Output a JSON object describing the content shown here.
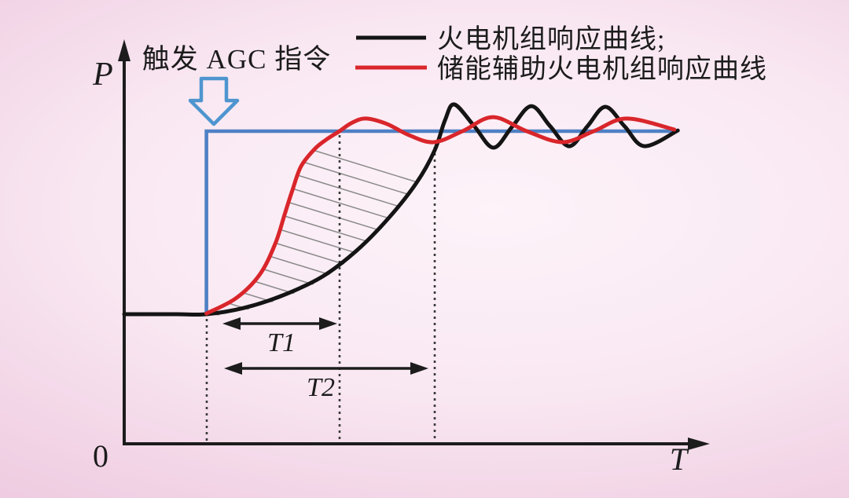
{
  "figure": {
    "y_axis_label": "P",
    "x_axis_label": "T",
    "origin_label": "0",
    "agc_annotation": "触发 AGC 指令",
    "t1_label": "T1",
    "t2_label": "T2",
    "legend": {
      "items": [
        {
          "label": "火电机组响应曲线;",
          "color": "#141414"
        },
        {
          "label": "储能辅助火电机组响应曲线",
          "color": "#d9262b"
        }
      ]
    },
    "colors": {
      "agc_text_blue": "#4a7cc0",
      "step_blue": "#4e80c4",
      "arrow_outline_blue": "#4e95cf",
      "thermal_black": "#141414",
      "storage_red": "#d9262b",
      "hatch_gray": "#8a8a8a",
      "dotted_line": "#3a3a3a",
      "background_center": "#fdf3f9",
      "background_edge": "#e9bedb"
    }
  },
  "chart_data": {
    "type": "line",
    "title": "",
    "xlabel": "T",
    "ylabel": "P",
    "axis_note": "axes unlabeled except origin 0; values normalized: baseline power = 0, AGC setpoint = 1",
    "xlim": [
      0,
      1
    ],
    "ylim": [
      0,
      1.3
    ],
    "grid": false,
    "legend_position": "top-right",
    "annotations": {
      "agc_trigger_label": "触发 AGC 指令",
      "agc_trigger_t": 0.141,
      "t1_span": [
        0.17,
        0.365
      ],
      "t2_span": [
        0.17,
        0.52
      ],
      "dotted_vertical_lines_t": [
        0.141,
        0.369,
        0.532
      ],
      "hatched_region": "area between storage-assisted curve and thermal-only curve for t = 0.141 to 0.53"
    },
    "series": [
      {
        "id": "agc-step",
        "name": "AGC 指令 (阶跃)",
        "color": "#4e80c4",
        "smooth": false,
        "in_legend": false,
        "points": [
          [
            0.141,
            -0.004
          ],
          [
            0.141,
            1.0
          ],
          [
            0.946,
            1.0
          ]
        ]
      },
      {
        "id": "thermal",
        "name": "火电机组响应曲线",
        "color": "#141414",
        "smooth": true,
        "in_legend": true,
        "points": [
          [
            0.0,
            0.0
          ],
          [
            0.09,
            0.0
          ],
          [
            0.141,
            0.0
          ],
          [
            0.205,
            0.034
          ],
          [
            0.272,
            0.103
          ],
          [
            0.34,
            0.206
          ],
          [
            0.4,
            0.352
          ],
          [
            0.454,
            0.528
          ],
          [
            0.501,
            0.717
          ],
          [
            0.532,
            0.893
          ],
          [
            0.55,
            1.06
          ],
          [
            0.566,
            1.146
          ],
          [
            0.6,
            1.028
          ],
          [
            0.633,
            0.91
          ],
          [
            0.665,
            1.024
          ],
          [
            0.698,
            1.137
          ],
          [
            0.73,
            1.028
          ],
          [
            0.763,
            0.918
          ],
          [
            0.794,
            1.026
          ],
          [
            0.825,
            1.133
          ],
          [
            0.858,
            1.026
          ],
          [
            0.892,
            0.918
          ],
          [
            0.949,
            1.004
          ]
        ]
      },
      {
        "id": "storage",
        "name": "储能辅助火电机组响应曲线",
        "color": "#d9262b",
        "smooth": true,
        "in_legend": true,
        "points": [
          [
            0.141,
            0.004
          ],
          [
            0.191,
            0.086
          ],
          [
            0.232,
            0.215
          ],
          [
            0.259,
            0.386
          ],
          [
            0.275,
            0.545
          ],
          [
            0.288,
            0.674
          ],
          [
            0.303,
            0.807
          ],
          [
            0.326,
            0.901
          ],
          [
            0.346,
            0.953
          ],
          [
            0.369,
            1.0
          ],
          [
            0.39,
            1.045
          ],
          [
            0.414,
            1.069
          ],
          [
            0.45,
            1.04
          ],
          [
            0.488,
            0.979
          ],
          [
            0.531,
            0.94
          ],
          [
            0.58,
            1.0
          ],
          [
            0.632,
            1.077
          ],
          [
            0.69,
            1.0
          ],
          [
            0.751,
            0.94
          ],
          [
            0.805,
            1.0
          ],
          [
            0.861,
            1.069
          ],
          [
            0.943,
            1.009
          ]
        ]
      }
    ]
  }
}
